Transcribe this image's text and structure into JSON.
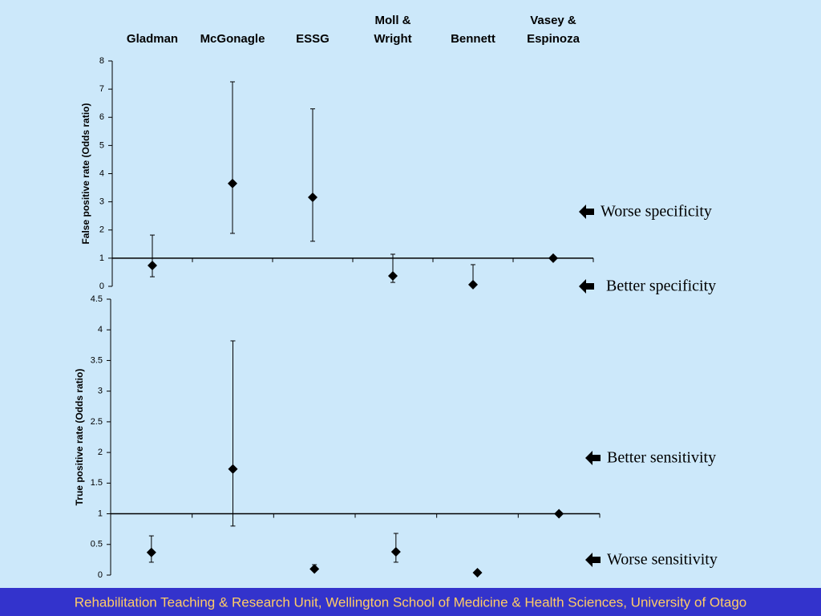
{
  "chart_data": [
    {
      "type": "errorbar",
      "y_label": "False positive rate (Odds ratio)",
      "categories": [
        "Gladman",
        "McGonagle",
        "ESSG",
        "Moll &\nWright",
        "Bennett",
        "Vasey &\nEspinoza"
      ],
      "values": [
        0.74,
        3.65,
        3.16,
        0.37,
        0.06,
        1.0
      ],
      "lower": [
        0.34,
        1.88,
        1.6,
        0.14,
        0.0,
        null
      ],
      "upper": [
        1.82,
        7.26,
        6.3,
        1.14,
        0.77,
        null
      ],
      "color": "#000000",
      "ylim": [
        0,
        8
      ],
      "yticks": [
        0,
        1,
        2,
        3,
        4,
        5,
        6,
        7,
        8
      ],
      "x_axis_at": 1,
      "annotations": [
        "Worse specificity",
        "Better specificity"
      ]
    },
    {
      "type": "errorbar",
      "y_label": "True positive rate (Odds ratio)",
      "categories": [
        null,
        null,
        null,
        null,
        null,
        null
      ],
      "values": [
        0.37,
        1.73,
        0.1,
        0.38,
        0.04,
        1.0
      ],
      "lower": [
        0.21,
        0.8,
        0.08,
        0.21,
        null,
        null
      ],
      "upper": [
        0.64,
        3.82,
        0.17,
        0.68,
        null,
        null
      ],
      "color": "#000000",
      "ylim": [
        0,
        4.5
      ],
      "yticks": [
        0,
        0.5,
        1,
        1.5,
        2,
        2.5,
        3,
        3.5,
        4,
        4.5
      ],
      "x_axis_at": 1,
      "annotations": [
        "Better sensitivity",
        "Worse sensitivity"
      ]
    }
  ],
  "footer": "Rehabilitation Teaching & Research Unit, Wellington School of Medicine & Health Sciences, University of Otago"
}
